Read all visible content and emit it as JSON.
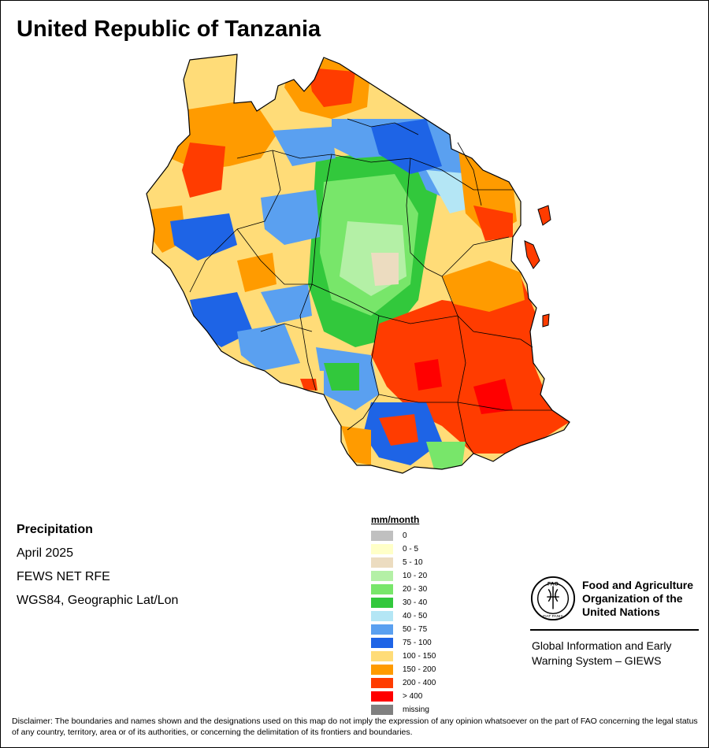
{
  "title": "United Republic of Tanzania",
  "info": {
    "heading": "Precipitation",
    "period": "April 2025",
    "source": "FEWS NET RFE",
    "projection": "WGS84, Geographic Lat/Lon"
  },
  "legend": {
    "title": "mm/month",
    "classes": [
      {
        "label": "0",
        "color": "#c0c0c0"
      },
      {
        "label": "0 - 5",
        "color": "#ffffc8"
      },
      {
        "label": "5 - 10",
        "color": "#ecdcc0"
      },
      {
        "label": "10 - 20",
        "color": "#b4f0a6"
      },
      {
        "label": "20 - 30",
        "color": "#78e66a"
      },
      {
        "label": "30 - 40",
        "color": "#32c83c"
      },
      {
        "label": "40 - 50",
        "color": "#b4e6f5"
      },
      {
        "label": "50 - 75",
        "color": "#5aa0f0"
      },
      {
        "label": "75 - 100",
        "color": "#1e64e6"
      },
      {
        "label": "100 - 150",
        "color": "#ffdc78"
      },
      {
        "label": "150 - 200",
        "color": "#ff9b00"
      },
      {
        "label": "200 - 400",
        "color": "#ff3c00"
      },
      {
        "label": "> 400",
        "color": "#ff0000"
      },
      {
        "label": "missing",
        "color": "#808080"
      }
    ]
  },
  "fao": {
    "name_line1": "Food and Agriculture",
    "name_line2": "Organization of the",
    "name_line3": "United Nations",
    "logo_text": "FAO",
    "logo_ring_text": "FIAT PANIS",
    "giews_line1": "Global Information and Early",
    "giews_line2": "Warning System – GIEWS"
  },
  "disclaimer": "Disclaimer: The boundaries and names shown and the designations used on this map do not imply the expression of any opinion whatsoever on the part of FAO concerning the legal status of any country, territory, area or of its authorities, or concerning the delimitation of its frontiers and boundaries."
}
